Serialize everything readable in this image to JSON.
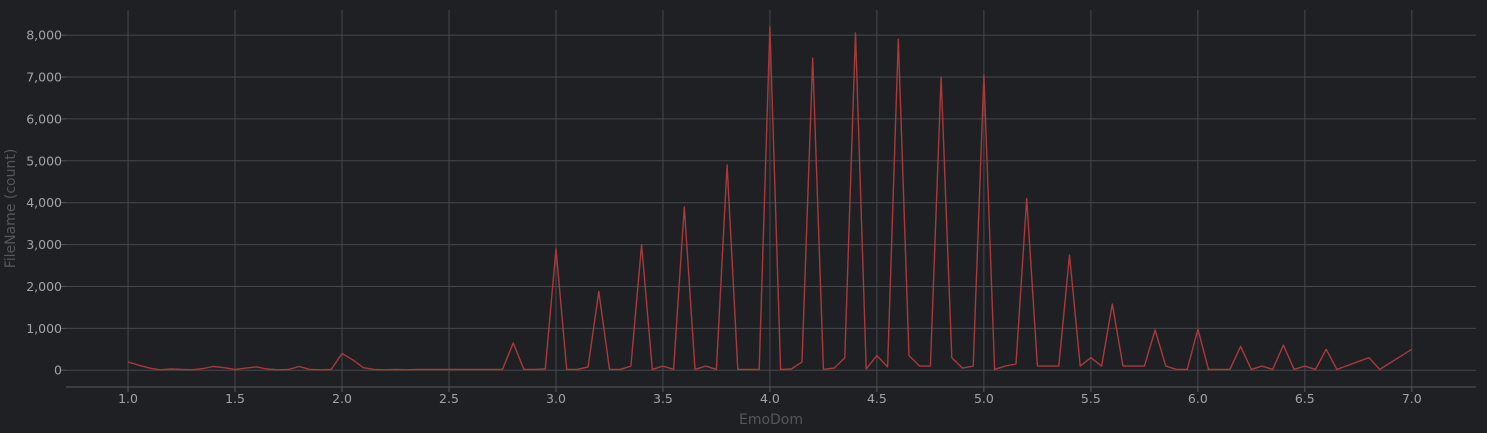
{
  "chart_data": {
    "type": "line",
    "title": "",
    "xlabel": "EmoDom",
    "ylabel": "FileName (count)",
    "xlim": [
      0.71,
      7.3
    ],
    "ylim": [
      -400,
      8600
    ],
    "grid": true,
    "legend": "none",
    "x_ticks": [
      1.0,
      1.5,
      2.0,
      2.5,
      3.0,
      3.5,
      4.0,
      4.5,
      5.0,
      5.5,
      6.0,
      6.5,
      7.0
    ],
    "x_tick_labels": [
      "1.0",
      "1.5",
      "2.0",
      "2.5",
      "3.0",
      "3.5",
      "4.0",
      "4.5",
      "5.0",
      "5.5",
      "6.0",
      "6.5",
      "7.0"
    ],
    "y_ticks": [
      0,
      1000,
      2000,
      3000,
      4000,
      5000,
      6000,
      7000,
      8000
    ],
    "y_tick_labels": [
      "0",
      "1,000",
      "2,000",
      "3,000",
      "4,000",
      "5,000",
      "6,000",
      "7,000",
      "8,000"
    ],
    "colors": {
      "series": "#a8393c",
      "background": "#1f2024",
      "grid": "#46474c"
    },
    "series": [
      {
        "name": "",
        "x": [
          1.0,
          1.05,
          1.1,
          1.15,
          1.2,
          1.25,
          1.3,
          1.35,
          1.4,
          1.45,
          1.5,
          1.55,
          1.6,
          1.65,
          1.7,
          1.75,
          1.8,
          1.85,
          1.9,
          1.95,
          2.0,
          2.05,
          2.1,
          2.15,
          2.2,
          2.25,
          2.3,
          2.35,
          2.4,
          2.45,
          2.5,
          2.55,
          2.6,
          2.65,
          2.7,
          2.75,
          2.8,
          2.85,
          2.9,
          2.95,
          3.0,
          3.05,
          3.1,
          3.15,
          3.2,
          3.25,
          3.3,
          3.35,
          3.4,
          3.45,
          3.5,
          3.55,
          3.6,
          3.65,
          3.7,
          3.75,
          3.8,
          3.85,
          3.9,
          3.95,
          4.0,
          4.05,
          4.1,
          4.15,
          4.2,
          4.25,
          4.3,
          4.35,
          4.4,
          4.45,
          4.5,
          4.55,
          4.6,
          4.65,
          4.7,
          4.75,
          4.8,
          4.85,
          4.9,
          4.95,
          5.0,
          5.05,
          5.1,
          5.15,
          5.2,
          5.25,
          5.3,
          5.35,
          5.4,
          5.45,
          5.5,
          5.55,
          5.6,
          5.65,
          5.7,
          5.75,
          5.8,
          5.85,
          5.9,
          5.95,
          6.0,
          6.05,
          6.1,
          6.15,
          6.2,
          6.25,
          6.3,
          6.35,
          6.4,
          6.45,
          6.5,
          6.55,
          6.6,
          6.65,
          6.8,
          6.85,
          7.0
        ],
        "values": [
          200,
          120,
          50,
          10,
          30,
          20,
          10,
          40,
          90,
          60,
          20,
          50,
          80,
          30,
          10,
          20,
          90,
          20,
          10,
          20,
          400,
          250,
          60,
          20,
          10,
          20,
          10,
          20,
          20,
          20,
          20,
          20,
          20,
          20,
          20,
          20,
          650,
          20,
          20,
          30,
          2900,
          20,
          20,
          80,
          1880,
          20,
          20,
          100,
          3000,
          20,
          100,
          20,
          3900,
          20,
          100,
          20,
          4900,
          20,
          20,
          20,
          8200,
          20,
          30,
          200,
          7450,
          20,
          50,
          300,
          8050,
          30,
          350,
          80,
          7900,
          350,
          100,
          100,
          7000,
          300,
          50,
          100,
          7050,
          20,
          100,
          150,
          4100,
          100,
          100,
          100,
          2750,
          100,
          300,
          100,
          1580,
          100,
          100,
          100,
          960,
          100,
          20,
          20,
          980,
          20,
          20,
          20,
          570,
          20,
          100,
          20,
          600,
          20,
          100,
          20,
          500,
          20,
          300,
          20,
          500
        ]
      }
    ]
  }
}
